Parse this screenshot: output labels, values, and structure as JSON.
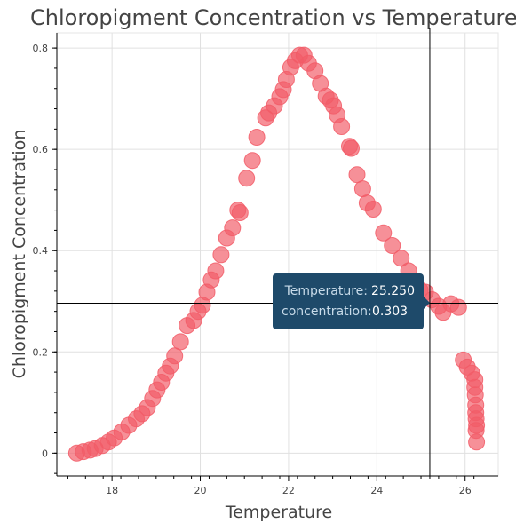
{
  "chart_data": {
    "type": "scatter",
    "title": "Chloropigment Concentration vs Temperature",
    "xlabel": "Temperature",
    "ylabel": "Chloropigment Concentration",
    "xlim": [
      16.75,
      26.75
    ],
    "ylim": [
      -0.045,
      0.83
    ],
    "xticks": [
      18,
      20,
      22,
      24,
      26
    ],
    "yticks": [
      0,
      0.2,
      0.4,
      0.6,
      0.8
    ],
    "xtick_labels": [
      "18",
      "20",
      "22",
      "24",
      "26"
    ],
    "ytick_labels": [
      "0",
      "0.2",
      "0.4",
      "0.6",
      "0.8"
    ],
    "grid": true,
    "marker_color": "#f25c67",
    "points": [
      [
        17.2,
        0.0
      ],
      [
        17.35,
        0.003
      ],
      [
        17.5,
        0.006
      ],
      [
        17.62,
        0.009
      ],
      [
        17.78,
        0.015
      ],
      [
        17.92,
        0.022
      ],
      [
        18.05,
        0.03
      ],
      [
        18.22,
        0.042
      ],
      [
        18.38,
        0.055
      ],
      [
        18.55,
        0.068
      ],
      [
        18.68,
        0.078
      ],
      [
        18.8,
        0.09
      ],
      [
        18.92,
        0.108
      ],
      [
        19.02,
        0.125
      ],
      [
        19.12,
        0.14
      ],
      [
        19.22,
        0.158
      ],
      [
        19.32,
        0.172
      ],
      [
        19.42,
        0.192
      ],
      [
        19.55,
        0.22
      ],
      [
        19.7,
        0.252
      ],
      [
        19.85,
        0.262
      ],
      [
        19.95,
        0.28
      ],
      [
        20.05,
        0.292
      ],
      [
        20.15,
        0.318
      ],
      [
        20.25,
        0.342
      ],
      [
        20.35,
        0.36
      ],
      [
        20.47,
        0.392
      ],
      [
        20.6,
        0.425
      ],
      [
        20.73,
        0.445
      ],
      [
        20.85,
        0.48
      ],
      [
        20.9,
        0.475
      ],
      [
        21.05,
        0.543
      ],
      [
        21.18,
        0.578
      ],
      [
        21.28,
        0.624
      ],
      [
        21.48,
        0.662
      ],
      [
        21.55,
        0.672
      ],
      [
        21.68,
        0.686
      ],
      [
        21.8,
        0.704
      ],
      [
        21.88,
        0.718
      ],
      [
        21.95,
        0.738
      ],
      [
        22.05,
        0.762
      ],
      [
        22.15,
        0.775
      ],
      [
        22.25,
        0.786
      ],
      [
        22.35,
        0.786
      ],
      [
        22.45,
        0.77
      ],
      [
        22.6,
        0.755
      ],
      [
        22.72,
        0.73
      ],
      [
        22.85,
        0.705
      ],
      [
        22.95,
        0.697
      ],
      [
        23.02,
        0.686
      ],
      [
        23.1,
        0.668
      ],
      [
        23.2,
        0.645
      ],
      [
        23.38,
        0.606
      ],
      [
        23.42,
        0.602
      ],
      [
        23.55,
        0.55
      ],
      [
        23.68,
        0.522
      ],
      [
        23.78,
        0.494
      ],
      [
        23.92,
        0.482
      ],
      [
        24.15,
        0.435
      ],
      [
        24.35,
        0.41
      ],
      [
        24.55,
        0.385
      ],
      [
        24.72,
        0.36
      ],
      [
        24.85,
        0.338
      ],
      [
        24.98,
        0.322
      ],
      [
        25.1,
        0.318
      ],
      [
        25.25,
        0.303
      ],
      [
        25.4,
        0.29
      ],
      [
        25.5,
        0.278
      ],
      [
        25.68,
        0.295
      ],
      [
        25.85,
        0.288
      ],
      [
        25.96,
        0.184
      ],
      [
        26.05,
        0.17
      ],
      [
        26.15,
        0.158
      ],
      [
        26.22,
        0.145
      ],
      [
        26.22,
        0.13
      ],
      [
        26.23,
        0.115
      ],
      [
        26.24,
        0.095
      ],
      [
        26.24,
        0.08
      ],
      [
        26.25,
        0.068
      ],
      [
        26.26,
        0.055
      ],
      [
        26.25,
        0.045
      ],
      [
        26.26,
        0.022
      ]
    ],
    "crosshair": {
      "x": 25.2,
      "y": 0.296
    },
    "tooltip": {
      "x_key": "Temperature:",
      "x_value": "25.250",
      "y_key": "concentration:",
      "y_value": "0.303"
    }
  }
}
